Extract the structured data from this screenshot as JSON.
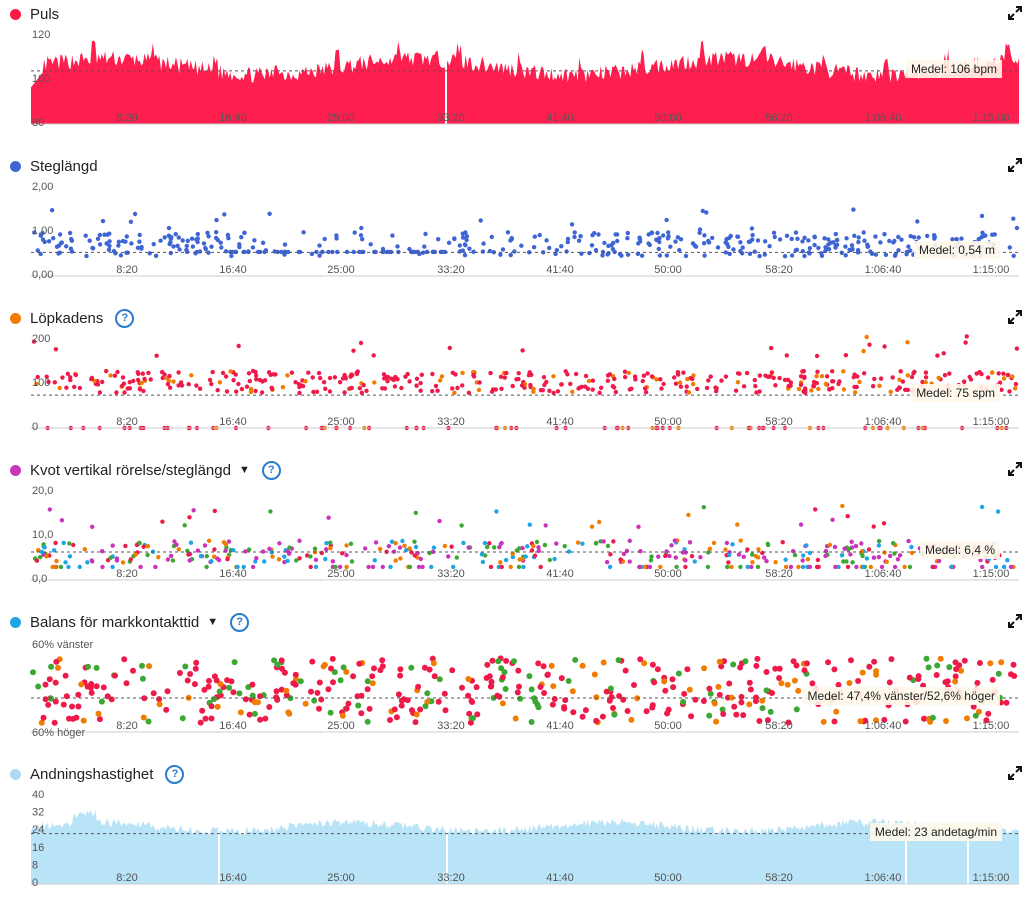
{
  "x_ticks": [
    "8:20",
    "16:40",
    "25:00",
    "33:20",
    "41:40",
    "50:00",
    "58:20",
    "1:06:40",
    "1:15:00"
  ],
  "panels": [
    {
      "id": "puls",
      "title": "Puls",
      "dot_color": "#ff1a4b",
      "help": false,
      "caret": false,
      "y_ticks": [
        "120",
        "100",
        "80"
      ],
      "avg_text": "Medel: 106 bpm",
      "kind": "area",
      "fill": "#ff1f4e",
      "ymin": 80,
      "ymax": 125,
      "avg": 106
    },
    {
      "id": "steg",
      "title": "Steglängd",
      "dot_color": "#3f65d4",
      "help": false,
      "caret": false,
      "y_ticks": [
        "2,00",
        "1,00",
        "0,00"
      ],
      "avg_text": "Medel: 0,54 m",
      "kind": "scatter",
      "ymin": 0,
      "ymax": 2.1,
      "avg": 0.54
    },
    {
      "id": "kad",
      "title": "Löpkadens",
      "dot_color": "#f07c00",
      "help": true,
      "caret": false,
      "y_ticks": [
        "200",
        "100",
        "0"
      ],
      "avg_text": "Medel: 75 spm",
      "kind": "scatter",
      "ymin": 0,
      "ymax": 210,
      "avg": 75
    },
    {
      "id": "kvot",
      "title": "Kvot vertikal rörelse/steglängd",
      "dot_color": "#cc33bb",
      "help": true,
      "caret": true,
      "y_ticks": [
        "20,0",
        "10,0",
        "0,0"
      ],
      "avg_text": "Medel: 6,4 %",
      "kind": "scatter",
      "ymin": 0,
      "ymax": 21,
      "avg": 6.4
    },
    {
      "id": "bal",
      "title": "Balans för markkontakttid",
      "dot_color": "#1ea5e6",
      "help": true,
      "caret": true,
      "y_ticks": [
        "60% vänster",
        "60% höger"
      ],
      "avg_text": "Medel: 47,4% vänster/52,6% höger",
      "kind": "scatter",
      "ymin": 40,
      "ymax": 60,
      "avg": 47.4
    },
    {
      "id": "andn",
      "title": "Andningshastighet",
      "dot_color": "#a9dbf3",
      "help": true,
      "caret": false,
      "y_ticks": [
        "40",
        "32",
        "24",
        "16",
        "8",
        "0"
      ],
      "avg_text": "Medel: 23 andetag/min",
      "kind": "area",
      "fill": "#b9e3f6",
      "ymin": 0,
      "ymax": 42,
      "avg": 23
    }
  ]
}
